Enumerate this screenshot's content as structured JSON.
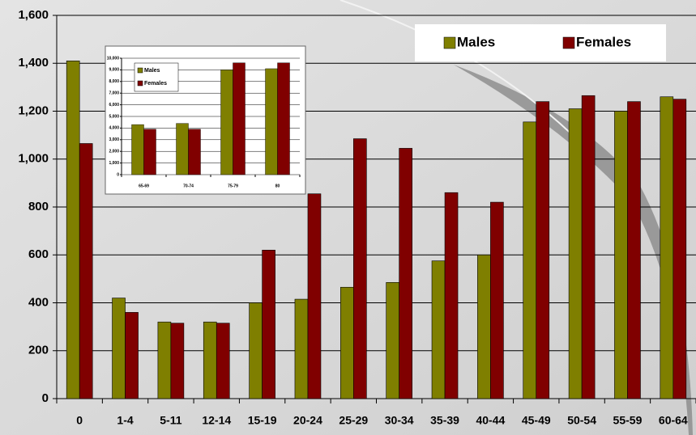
{
  "chart_data": [
    {
      "type": "bar",
      "categories": [
        "0",
        "1-4",
        "5-11",
        "12-14",
        "15-19",
        "20-24",
        "25-29",
        "30-34",
        "35-39",
        "40-44",
        "45-49",
        "50-54",
        "55-59",
        "60-64"
      ],
      "series": [
        {
          "name": "Males",
          "color": "#7f7f00",
          "values": [
            1410,
            420,
            320,
            320,
            400,
            415,
            465,
            485,
            575,
            600,
            1155,
            1210,
            1200,
            1260
          ]
        },
        {
          "name": "Females",
          "color": "#800000",
          "values": [
            1065,
            360,
            315,
            315,
            620,
            855,
            1085,
            1045,
            860,
            820,
            1240,
            1265,
            1240,
            1250
          ]
        }
      ],
      "ylim": [
        0,
        1600
      ],
      "yticks": [
        0,
        200,
        400,
        600,
        800,
        {
          "value": 1000,
          "label": "1,000"
        },
        {
          "value": 1200,
          "label": "1,200"
        },
        {
          "value": 1400,
          "label": "1,400"
        },
        {
          "value": 1600,
          "label": "1,600"
        }
      ],
      "grid": true,
      "legend": "top-right"
    },
    {
      "type": "bar",
      "categories": [
        "65-69",
        "70-74",
        "75-79",
        "80"
      ],
      "series": [
        {
          "name": "Males",
          "color": "#7f7f00",
          "values": [
            4300,
            4400,
            9000,
            9100
          ]
        },
        {
          "name": "Females",
          "color": "#800000",
          "values": [
            3900,
            3900,
            9600,
            9600
          ]
        }
      ],
      "ylim": [
        0,
        10000
      ],
      "yticks": [
        0,
        {
          "value": 1000,
          "label": "1,000"
        },
        {
          "value": 2000,
          "label": "2,000"
        },
        {
          "value": 3000,
          "label": "3,000"
        },
        {
          "value": 4000,
          "label": "4,000"
        },
        {
          "value": 5000,
          "label": "5,000"
        },
        {
          "value": 6000,
          "label": "6,000"
        },
        {
          "value": 7000,
          "label": "7,000"
        },
        {
          "value": 8000,
          "label": "8,000"
        },
        {
          "value": 9000,
          "label": "9,000"
        },
        {
          "value": 10000,
          "label": "10,000"
        }
      ],
      "grid": true,
      "legend": "top-left"
    }
  ]
}
